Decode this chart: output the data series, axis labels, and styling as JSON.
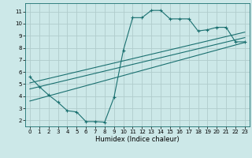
{
  "title": "",
  "xlabel": "Humidex (Indice chaleur)",
  "bg_color": "#cce8e8",
  "grid_color": "#b0cccc",
  "line_color": "#1a7070",
  "xlim": [
    -0.5,
    23.5
  ],
  "ylim": [
    1.5,
    11.7
  ],
  "xticks": [
    0,
    1,
    2,
    3,
    4,
    5,
    6,
    7,
    8,
    9,
    10,
    11,
    12,
    13,
    14,
    15,
    16,
    17,
    18,
    19,
    20,
    21,
    22,
    23
  ],
  "yticks": [
    2,
    3,
    4,
    5,
    6,
    7,
    8,
    9,
    10,
    11
  ],
  "curve_x": [
    0,
    1,
    2,
    3,
    4,
    5,
    6,
    7,
    8,
    9,
    10,
    11,
    12,
    13,
    14,
    15,
    16,
    17,
    18,
    19,
    20,
    21,
    22,
    23
  ],
  "curve_y": [
    5.6,
    4.8,
    4.1,
    3.5,
    2.8,
    2.7,
    1.9,
    1.9,
    1.85,
    3.9,
    7.8,
    10.5,
    10.5,
    11.1,
    11.1,
    10.4,
    10.4,
    10.4,
    9.4,
    9.5,
    9.7,
    9.7,
    8.5,
    8.5
  ],
  "line1_x": [
    0,
    23
  ],
  "line1_y": [
    5.1,
    9.3
  ],
  "line2_x": [
    0,
    23
  ],
  "line2_y": [
    4.6,
    8.85
  ],
  "line3_x": [
    0,
    23
  ],
  "line3_y": [
    3.6,
    8.45
  ]
}
